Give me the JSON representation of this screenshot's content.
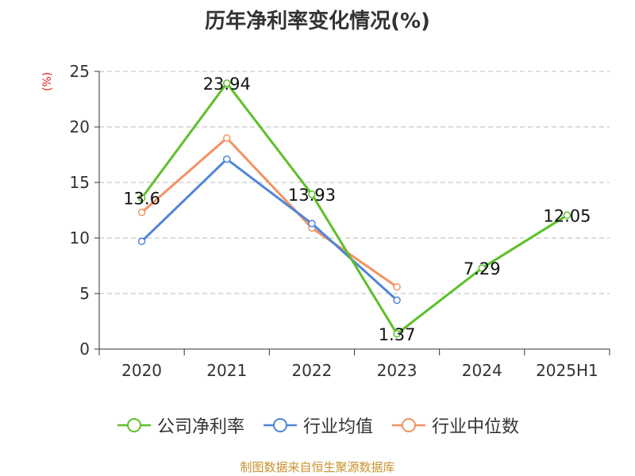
{
  "chart_data": {
    "type": "line",
    "title": "历年净利率变化情况(%)",
    "ylabel": "(%)",
    "categories": [
      "2020",
      "2021",
      "2022",
      "2023",
      "2024",
      "2025H1"
    ],
    "ylim": [
      0,
      25
    ],
    "yticks": [
      0,
      5,
      10,
      15,
      20,
      25
    ],
    "grid": true,
    "legend_position": "bottom",
    "series": [
      {
        "name": "公司净利率",
        "color": "#5cc029",
        "values": [
          13.6,
          23.94,
          13.93,
          1.37,
          7.29,
          12.05
        ],
        "labels": [
          "13.6",
          "23.94",
          "13.93",
          "1.37",
          "7.29",
          "12.05"
        ]
      },
      {
        "name": "行业均值",
        "color": "#4f85d8",
        "values": [
          9.7,
          17.1,
          11.3,
          4.4,
          null,
          null
        ]
      },
      {
        "name": "行业中位数",
        "color": "#f39263",
        "values": [
          12.3,
          19.0,
          10.9,
          5.6,
          null,
          null
        ]
      }
    ]
  },
  "source": "制图数据来自恒生聚源数据库"
}
